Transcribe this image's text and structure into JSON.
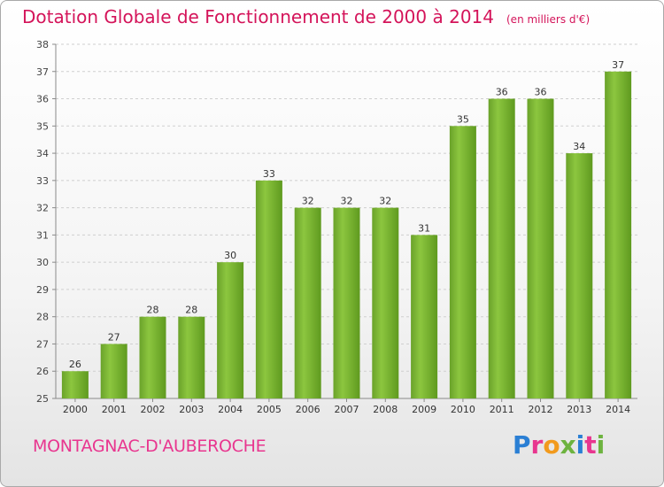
{
  "chart_data": {
    "type": "bar",
    "title": "Dotation Globale de Fonctionnement de 2000 à 2014",
    "unit": "(en milliers d'€)",
    "categories": [
      "2000",
      "2001",
      "2002",
      "2003",
      "2004",
      "2005",
      "2006",
      "2007",
      "2008",
      "2009",
      "2010",
      "2011",
      "2012",
      "2013",
      "2014"
    ],
    "values": [
      26,
      27,
      28,
      28,
      30,
      33,
      32,
      32,
      32,
      31,
      35,
      36,
      36,
      34,
      37
    ],
    "ylim": [
      25,
      38
    ],
    "yticks": [
      25,
      26,
      27,
      28,
      29,
      30,
      31,
      32,
      33,
      34,
      35,
      36,
      37,
      38
    ],
    "grid": true,
    "bar_color": "#7cb82f"
  },
  "commune": "MONTAGNAC-D'AUBEROCHE",
  "logo": {
    "text": "Proxiti",
    "letter_colors": [
      "#2a7fd4",
      "#e8368f",
      "#f29a1d",
      "#6db33f",
      "#2a7fd4",
      "#e8368f",
      "#6db33f"
    ]
  }
}
